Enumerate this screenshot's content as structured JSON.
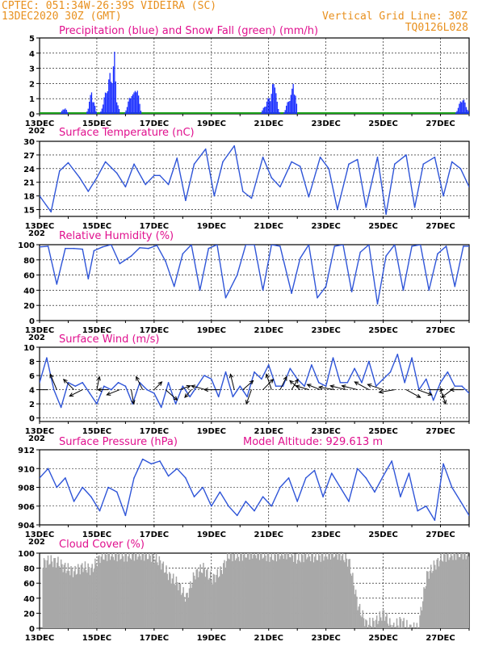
{
  "header": {
    "line1": "CPTEC:   051:34W-26:39S   VIDEIRA (SC)",
    "line2": "13DEC2020 30Z (GMT)",
    "grid_note": "Vertical Grid Line: 30Z",
    "run_id": "TQ0126L028"
  },
  "x_axis": {
    "date_labels": [
      "13DEC",
      "15DEC",
      "17DEC",
      "19DEC",
      "21DEC",
      "23DEC",
      "25DEC",
      "27DEC"
    ],
    "truncated_year": "202"
  },
  "colors": {
    "orange": "#e8901e",
    "magenta": "#e0108e",
    "precip": "#1a2eff",
    "snow": "#1aa01a",
    "line": "#2f55d8",
    "cloud": "#a8a8a8",
    "arrow": "#000000"
  },
  "chart_data": [
    {
      "id": "precip",
      "type": "bar",
      "title": "Precipitation (blue) and Snow Fall (green) (mm/h)",
      "ylim": [
        0,
        5
      ],
      "yticks": [
        "0",
        "1",
        "2",
        "3",
        "4",
        "5"
      ],
      "x_range_days": [
        0,
        15
      ],
      "series": [
        {
          "name": "Precipitation",
          "color": "#1a2eff",
          "bursts": [
            [
              0.85,
              0.15,
              0.5
            ],
            [
              1.8,
              0.18,
              1.6
            ],
            [
              2.45,
              0.35,
              2.8
            ],
            [
              2.55,
              0.2,
              3.6
            ],
            [
              2.6,
              0.1,
              4.1
            ],
            [
              3.2,
              0.25,
              1.6
            ],
            [
              3.35,
              0.2,
              2.2
            ],
            [
              8.05,
              0.35,
              1.4
            ],
            [
              8.15,
              0.2,
              2.3
            ],
            [
              8.2,
              0.1,
              2.7
            ],
            [
              8.75,
              0.25,
              1.4
            ],
            [
              8.85,
              0.15,
              2.5
            ],
            [
              14.75,
              0.25,
              1.2
            ]
          ]
        },
        {
          "name": "Snow Fall",
          "color": "#1aa01a",
          "values_note": "near-zero trace along baseline"
        }
      ]
    },
    {
      "id": "temperature",
      "type": "line",
      "title": "Surface Temperature (nC)",
      "ylim": [
        13.5,
        30
      ],
      "yticks": [
        "15",
        "18",
        "21",
        "24",
        "27",
        "30"
      ],
      "x": [
        0,
        0.4,
        0.7,
        1.0,
        1.4,
        1.7,
        2.0,
        2.3,
        2.7,
        3.0,
        3.3,
        3.7,
        4.0,
        4.2,
        4.5,
        4.8,
        5.1,
        5.4,
        5.8,
        6.1,
        6.4,
        6.8,
        7.1,
        7.4,
        7.8,
        8.1,
        8.4,
        8.8,
        9.1,
        9.4,
        9.8,
        10.1,
        10.4,
        10.8,
        11.1,
        11.4,
        11.8,
        12.1,
        12.4,
        12.8,
        13.1,
        13.4,
        13.8,
        14.1,
        14.4,
        14.7,
        15.0
      ],
      "values": [
        18,
        14.5,
        23.5,
        25.3,
        22,
        19,
        22,
        25.5,
        23,
        20,
        25,
        20.5,
        22.5,
        22.5,
        20.5,
        26.3,
        17,
        25,
        28.3,
        18,
        25.5,
        29,
        19,
        17.5,
        26.5,
        22,
        20,
        25.5,
        24.5,
        17.8,
        26.5,
        24,
        15,
        25,
        26,
        15.5,
        26.5,
        14,
        25,
        27,
        15.5,
        25,
        26.5,
        18,
        25.5,
        24,
        20
      ]
    },
    {
      "id": "humidity",
      "type": "line",
      "title": "Relative Humidity (%)",
      "ylim": [
        0,
        100
      ],
      "yticks": [
        "0",
        "20",
        "40",
        "60",
        "80",
        "100"
      ],
      "x": [
        0,
        0.3,
        0.6,
        0.9,
        1.2,
        1.5,
        1.7,
        1.9,
        2.2,
        2.5,
        2.8,
        3.2,
        3.5,
        3.8,
        4.1,
        4.4,
        4.7,
        5.0,
        5.3,
        5.6,
        5.9,
        6.2,
        6.5,
        6.9,
        7.2,
        7.5,
        7.8,
        8.1,
        8.4,
        8.8,
        9.1,
        9.4,
        9.7,
        10.0,
        10.3,
        10.6,
        10.9,
        11.2,
        11.5,
        11.8,
        12.1,
        12.4,
        12.7,
        13.0,
        13.3,
        13.6,
        13.9,
        14.2,
        14.5,
        14.8,
        15.0
      ],
      "values": [
        97,
        98,
        48,
        95,
        95,
        94,
        55,
        92,
        97,
        100,
        75,
        85,
        96,
        95,
        99,
        78,
        45,
        88,
        100,
        40,
        95,
        100,
        30,
        60,
        100,
        100,
        40,
        100,
        98,
        36,
        82,
        100,
        30,
        45,
        98,
        100,
        38,
        90,
        100,
        22,
        85,
        100,
        40,
        98,
        100,
        40,
        88,
        98,
        45,
        98,
        98
      ]
    },
    {
      "id": "wind",
      "type": "line",
      "title": "Surface Wind (m/s)",
      "ylim": [
        -0.5,
        10
      ],
      "yticks": [
        "0",
        "2",
        "4",
        "6",
        "8",
        "10"
      ],
      "x": [
        0,
        0.25,
        0.5,
        0.75,
        1.0,
        1.25,
        1.5,
        1.75,
        2.0,
        2.25,
        2.5,
        2.75,
        3.0,
        3.25,
        3.5,
        3.75,
        4.0,
        4.25,
        4.5,
        4.75,
        5.0,
        5.25,
        5.5,
        5.75,
        6.0,
        6.25,
        6.5,
        6.75,
        7.0,
        7.25,
        7.5,
        7.75,
        8.0,
        8.25,
        8.5,
        8.75,
        9.0,
        9.25,
        9.5,
        9.75,
        10.0,
        10.25,
        10.5,
        10.75,
        11.0,
        11.25,
        11.5,
        11.75,
        12.0,
        12.25,
        12.5,
        12.75,
        13.0,
        13.25,
        13.5,
        13.75,
        14.0,
        14.25,
        14.5,
        14.75,
        15.0
      ],
      "values": [
        5,
        8.5,
        4,
        1.5,
        5,
        4.5,
        5,
        3.5,
        2,
        4.5,
        4,
        5,
        4.5,
        2,
        5,
        4,
        3.5,
        1.5,
        5,
        2,
        4.5,
        3,
        4.5,
        6,
        5.5,
        3,
        6.5,
        3,
        4.5,
        3,
        6.5,
        5.5,
        7.5,
        4.5,
        4.5,
        7,
        5.5,
        4.5,
        7.5,
        5,
        4.5,
        8.5,
        5,
        5,
        7,
        5,
        8,
        4.5,
        5.5,
        6.5,
        9,
        5,
        8.5,
        4,
        5.5,
        2.5,
        5,
        6.5,
        4.5,
        4.5,
        3.5
      ],
      "arrows": [
        {
          "x": 0.3,
          "u": -1,
          "v": 0
        },
        {
          "x": 0.6,
          "u": -0.5,
          "v": 1.2
        },
        {
          "x": 1.2,
          "u": -0.8,
          "v": 0.8
        },
        {
          "x": 1.5,
          "u": -1,
          "v": -0.5
        },
        {
          "x": 2.0,
          "u": 0.2,
          "v": 1
        },
        {
          "x": 2.4,
          "u": -0.8,
          "v": 0
        },
        {
          "x": 2.8,
          "u": -1,
          "v": -0.4
        },
        {
          "x": 3.2,
          "u": 0.2,
          "v": -1.1
        },
        {
          "x": 3.6,
          "u": -0.5,
          "v": 1
        },
        {
          "x": 4.0,
          "u": 0.6,
          "v": 0.6
        },
        {
          "x": 4.4,
          "u": 0.9,
          "v": -0.8
        },
        {
          "x": 4.9,
          "u": 0.8,
          "v": 0.3
        },
        {
          "x": 5.3,
          "u": -0.5,
          "v": -0.6
        },
        {
          "x": 5.8,
          "u": -1.1,
          "v": 0.3
        },
        {
          "x": 6.3,
          "u": -1.2,
          "v": 0
        },
        {
          "x": 6.8,
          "u": -0.3,
          "v": 1.2
        },
        {
          "x": 7.1,
          "u": 0.8,
          "v": 0.7
        },
        {
          "x": 7.4,
          "u": -0.4,
          "v": -1.1
        },
        {
          "x": 7.8,
          "u": 0.8,
          "v": 0.8
        },
        {
          "x": 8.1,
          "u": -0.4,
          "v": 1.2
        },
        {
          "x": 8.4,
          "u": 0.5,
          "v": 1
        },
        {
          "x": 8.8,
          "u": 0.5,
          "v": 0.8
        },
        {
          "x": 9.1,
          "u": -0.8,
          "v": 0.7
        },
        {
          "x": 9.4,
          "u": -1,
          "v": 0.3
        },
        {
          "x": 9.8,
          "u": -1,
          "v": 0.4
        },
        {
          "x": 10.3,
          "u": -1.2,
          "v": 0.2
        },
        {
          "x": 10.7,
          "u": -1.2,
          "v": 0.3
        },
        {
          "x": 11.1,
          "u": -1.2,
          "v": 0.3
        },
        {
          "x": 11.5,
          "u": -1.1,
          "v": 0.6
        },
        {
          "x": 12.0,
          "u": -1.2,
          "v": 0.4
        },
        {
          "x": 12.4,
          "u": -1.2,
          "v": -0.2
        },
        {
          "x": 12.8,
          "u": 1.1,
          "v": -0.6
        },
        {
          "x": 13.2,
          "u": 1.1,
          "v": -0.4
        },
        {
          "x": 13.6,
          "u": 1.1,
          "v": 0
        },
        {
          "x": 14.0,
          "u": 0.4,
          "v": -1.1
        },
        {
          "x": 14.4,
          "u": -0.8,
          "v": -0.6
        },
        {
          "x": 14.8,
          "u": -1,
          "v": 0
        }
      ]
    },
    {
      "id": "pressure",
      "type": "line",
      "title": "Surface Pressure (hPa)",
      "altitude_note": "Model Altitude: 929.613 m",
      "ylim": [
        904,
        912
      ],
      "yticks": [
        "904",
        "906",
        "908",
        "910",
        "912"
      ],
      "x": [
        0,
        0.3,
        0.6,
        0.9,
        1.2,
        1.5,
        1.8,
        2.1,
        2.4,
        2.7,
        3.0,
        3.3,
        3.6,
        3.9,
        4.2,
        4.5,
        4.8,
        5.1,
        5.4,
        5.7,
        6.0,
        6.3,
        6.6,
        6.9,
        7.2,
        7.5,
        7.8,
        8.1,
        8.4,
        8.7,
        9.0,
        9.3,
        9.6,
        9.9,
        10.2,
        10.5,
        10.8,
        11.1,
        11.4,
        11.7,
        12.0,
        12.3,
        12.6,
        12.9,
        13.2,
        13.5,
        13.8,
        14.1,
        14.4,
        14.7,
        15.0
      ],
      "values": [
        909,
        910,
        908,
        909,
        906.5,
        908,
        907,
        905.5,
        908,
        907.5,
        905,
        909,
        911,
        910.5,
        910.8,
        909.2,
        910,
        909,
        907,
        908,
        906,
        907.5,
        906,
        905,
        906.5,
        905.5,
        907,
        906,
        908,
        909,
        906.5,
        909,
        909.8,
        907,
        909.5,
        908,
        906.5,
        910,
        909,
        907.5,
        909.2,
        910.8,
        907,
        909.5,
        905.5,
        906,
        904.5,
        910.5,
        908,
        906.5,
        905
      ]
    },
    {
      "id": "cloud",
      "type": "area",
      "title": "Cloud Cover (%)",
      "ylim": [
        0,
        100
      ],
      "yticks": [
        "0",
        "20",
        "40",
        "60",
        "80",
        "100"
      ],
      "x": [
        0,
        0.3,
        0.6,
        0.9,
        1.2,
        1.5,
        1.8,
        2.1,
        2.4,
        2.7,
        3.0,
        3.3,
        3.6,
        3.9,
        4.2,
        4.5,
        4.8,
        5.1,
        5.4,
        5.7,
        6.0,
        6.3,
        6.6,
        6.9,
        7.2,
        7.5,
        7.8,
        8.1,
        8.4,
        8.7,
        9.0,
        9.3,
        9.6,
        9.9,
        10.2,
        10.5,
        10.8,
        11.1,
        11.4,
        11.7,
        12.0,
        12.3,
        12.6,
        12.9,
        13.2,
        13.5,
        13.8,
        14.1,
        14.4,
        14.7,
        15.0
      ],
      "values": [
        85,
        90,
        88,
        80,
        75,
        82,
        78,
        95,
        98,
        97,
        96,
        98,
        98,
        96,
        88,
        70,
        60,
        40,
        72,
        80,
        65,
        75,
        98,
        96,
        99,
        100,
        98,
        95,
        99,
        100,
        92,
        98,
        95,
        97,
        100,
        98,
        88,
        30,
        5,
        8,
        20,
        0,
        10,
        0,
        0,
        70,
        85,
        96,
        98,
        100,
        98
      ]
    }
  ]
}
